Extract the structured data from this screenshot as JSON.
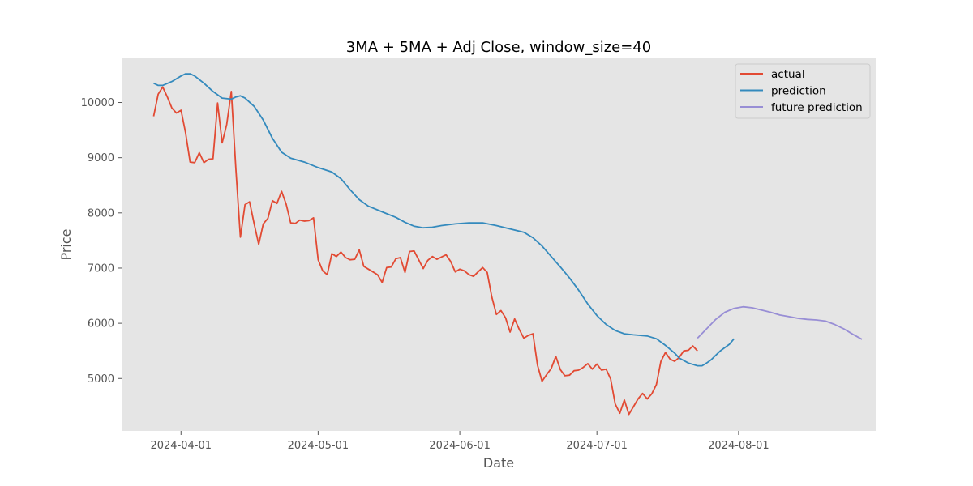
{
  "chart_data": {
    "type": "line",
    "title": "3MA + 5MA + Adj Close, window_size=40",
    "xlabel": "Date",
    "ylabel": "Price",
    "xlim": [
      "2024-03-19",
      "2024-08-31"
    ],
    "ylim": [
      4050,
      10800
    ],
    "x_ticks": [
      "2024-04-01",
      "2024-05-01",
      "2024-06-01",
      "2024-07-01",
      "2024-08-01"
    ],
    "y_ticks": [
      5000,
      6000,
      7000,
      8000,
      9000,
      10000
    ],
    "grid": false,
    "legend_position": "top-right",
    "series": [
      {
        "name": "actual",
        "color": "#e24a33",
        "points": [
          [
            "2024-03-26",
            9750
          ],
          [
            "2024-03-27",
            10150
          ],
          [
            "2024-03-28",
            10280
          ],
          [
            "2024-03-29",
            10100
          ],
          [
            "2024-03-30",
            9900
          ],
          [
            "2024-03-31",
            9810
          ],
          [
            "2024-04-01",
            9860
          ],
          [
            "2024-04-02",
            9450
          ],
          [
            "2024-04-03",
            8920
          ],
          [
            "2024-04-04",
            8910
          ],
          [
            "2024-04-05",
            9090
          ],
          [
            "2024-04-06",
            8910
          ],
          [
            "2024-04-07",
            8970
          ],
          [
            "2024-04-08",
            8980
          ],
          [
            "2024-04-09",
            9990
          ],
          [
            "2024-04-10",
            9270
          ],
          [
            "2024-04-11",
            9600
          ],
          [
            "2024-04-12",
            10200
          ],
          [
            "2024-04-13",
            8800
          ],
          [
            "2024-04-14",
            7560
          ],
          [
            "2024-04-15",
            8150
          ],
          [
            "2024-04-16",
            8200
          ],
          [
            "2024-04-17",
            7800
          ],
          [
            "2024-04-18",
            7430
          ],
          [
            "2024-04-19",
            7800
          ],
          [
            "2024-04-20",
            7900
          ],
          [
            "2024-04-21",
            8220
          ],
          [
            "2024-04-22",
            8170
          ],
          [
            "2024-04-23",
            8390
          ],
          [
            "2024-04-24",
            8160
          ],
          [
            "2024-04-25",
            7820
          ],
          [
            "2024-04-26",
            7810
          ],
          [
            "2024-04-27",
            7870
          ],
          [
            "2024-04-28",
            7850
          ],
          [
            "2024-04-29",
            7860
          ],
          [
            "2024-04-30",
            7910
          ],
          [
            "2024-05-01",
            7150
          ],
          [
            "2024-05-02",
            6950
          ],
          [
            "2024-05-03",
            6880
          ],
          [
            "2024-05-04",
            7260
          ],
          [
            "2024-05-05",
            7210
          ],
          [
            "2024-05-06",
            7290
          ],
          [
            "2024-05-07",
            7190
          ],
          [
            "2024-05-08",
            7150
          ],
          [
            "2024-05-09",
            7160
          ],
          [
            "2024-05-10",
            7330
          ],
          [
            "2024-05-11",
            7030
          ],
          [
            "2024-05-12",
            6980
          ],
          [
            "2024-05-13",
            6930
          ],
          [
            "2024-05-14",
            6880
          ],
          [
            "2024-05-15",
            6740
          ],
          [
            "2024-05-16",
            7010
          ],
          [
            "2024-05-17",
            7020
          ],
          [
            "2024-05-18",
            7170
          ],
          [
            "2024-05-19",
            7190
          ],
          [
            "2024-05-20",
            6920
          ],
          [
            "2024-05-21",
            7300
          ],
          [
            "2024-05-22",
            7310
          ],
          [
            "2024-05-23",
            7150
          ],
          [
            "2024-05-24",
            6990
          ],
          [
            "2024-05-25",
            7140
          ],
          [
            "2024-05-26",
            7210
          ],
          [
            "2024-05-27",
            7160
          ],
          [
            "2024-05-28",
            7200
          ],
          [
            "2024-05-29",
            7240
          ],
          [
            "2024-05-30",
            7120
          ],
          [
            "2024-05-31",
            6930
          ],
          [
            "2024-06-01",
            6980
          ],
          [
            "2024-06-02",
            6950
          ],
          [
            "2024-06-03",
            6880
          ],
          [
            "2024-06-04",
            6850
          ],
          [
            "2024-06-05",
            6930
          ],
          [
            "2024-06-06",
            7010
          ],
          [
            "2024-06-07",
            6920
          ],
          [
            "2024-06-08",
            6480
          ],
          [
            "2024-06-09",
            6160
          ],
          [
            "2024-06-10",
            6230
          ],
          [
            "2024-06-11",
            6100
          ],
          [
            "2024-06-12",
            5840
          ],
          [
            "2024-06-13",
            6080
          ],
          [
            "2024-06-14",
            5890
          ],
          [
            "2024-06-15",
            5730
          ],
          [
            "2024-06-16",
            5780
          ],
          [
            "2024-06-17",
            5810
          ],
          [
            "2024-06-18",
            5240
          ],
          [
            "2024-06-19",
            4950
          ],
          [
            "2024-06-20",
            5070
          ],
          [
            "2024-06-21",
            5180
          ],
          [
            "2024-06-22",
            5400
          ],
          [
            "2024-06-23",
            5160
          ],
          [
            "2024-06-24",
            5050
          ],
          [
            "2024-06-25",
            5060
          ],
          [
            "2024-06-26",
            5140
          ],
          [
            "2024-06-27",
            5150
          ],
          [
            "2024-06-28",
            5200
          ],
          [
            "2024-06-29",
            5270
          ],
          [
            "2024-06-30",
            5170
          ],
          [
            "2024-07-01",
            5260
          ],
          [
            "2024-07-02",
            5150
          ],
          [
            "2024-07-03",
            5170
          ],
          [
            "2024-07-04",
            4990
          ],
          [
            "2024-07-05",
            4540
          ],
          [
            "2024-07-06",
            4370
          ],
          [
            "2024-07-07",
            4610
          ],
          [
            "2024-07-08",
            4350
          ],
          [
            "2024-07-09",
            4490
          ],
          [
            "2024-07-10",
            4630
          ],
          [
            "2024-07-11",
            4730
          ],
          [
            "2024-07-12",
            4630
          ],
          [
            "2024-07-13",
            4720
          ],
          [
            "2024-07-14",
            4890
          ],
          [
            "2024-07-15",
            5310
          ],
          [
            "2024-07-16",
            5470
          ],
          [
            "2024-07-17",
            5350
          ],
          [
            "2024-07-18",
            5310
          ],
          [
            "2024-07-19",
            5380
          ],
          [
            "2024-07-20",
            5500
          ],
          [
            "2024-07-21",
            5510
          ],
          [
            "2024-07-22",
            5590
          ],
          [
            "2024-07-23",
            5500
          ]
        ]
      },
      {
        "name": "prediction",
        "color": "#348abd",
        "points": [
          [
            "2024-03-26",
            10350
          ],
          [
            "2024-03-27",
            10310
          ],
          [
            "2024-03-28",
            10310
          ],
          [
            "2024-03-30",
            10380
          ],
          [
            "2024-04-01",
            10480
          ],
          [
            "2024-04-02",
            10520
          ],
          [
            "2024-04-03",
            10520
          ],
          [
            "2024-04-04",
            10480
          ],
          [
            "2024-04-06",
            10350
          ],
          [
            "2024-04-08",
            10200
          ],
          [
            "2024-04-10",
            10080
          ],
          [
            "2024-04-12",
            10060
          ],
          [
            "2024-04-13",
            10100
          ],
          [
            "2024-04-14",
            10120
          ],
          [
            "2024-04-15",
            10080
          ],
          [
            "2024-04-17",
            9930
          ],
          [
            "2024-04-19",
            9680
          ],
          [
            "2024-04-21",
            9350
          ],
          [
            "2024-04-23",
            9100
          ],
          [
            "2024-04-25",
            8990
          ],
          [
            "2024-04-28",
            8920
          ],
          [
            "2024-05-01",
            8820
          ],
          [
            "2024-05-04",
            8740
          ],
          [
            "2024-05-06",
            8620
          ],
          [
            "2024-05-08",
            8420
          ],
          [
            "2024-05-10",
            8240
          ],
          [
            "2024-05-12",
            8120
          ],
          [
            "2024-05-15",
            8020
          ],
          [
            "2024-05-18",
            7920
          ],
          [
            "2024-05-20",
            7830
          ],
          [
            "2024-05-22",
            7760
          ],
          [
            "2024-05-24",
            7730
          ],
          [
            "2024-05-26",
            7740
          ],
          [
            "2024-05-28",
            7770
          ],
          [
            "2024-05-31",
            7800
          ],
          [
            "2024-06-03",
            7820
          ],
          [
            "2024-06-06",
            7820
          ],
          [
            "2024-06-09",
            7770
          ],
          [
            "2024-06-12",
            7710
          ],
          [
            "2024-06-15",
            7650
          ],
          [
            "2024-06-17",
            7550
          ],
          [
            "2024-06-19",
            7400
          ],
          [
            "2024-06-21",
            7210
          ],
          [
            "2024-06-23",
            7020
          ],
          [
            "2024-06-25",
            6820
          ],
          [
            "2024-06-27",
            6600
          ],
          [
            "2024-06-29",
            6350
          ],
          [
            "2024-07-01",
            6140
          ],
          [
            "2024-07-03",
            5980
          ],
          [
            "2024-07-05",
            5870
          ],
          [
            "2024-07-07",
            5810
          ],
          [
            "2024-07-09",
            5790
          ],
          [
            "2024-07-12",
            5770
          ],
          [
            "2024-07-14",
            5720
          ],
          [
            "2024-07-16",
            5600
          ],
          [
            "2024-07-18",
            5460
          ],
          [
            "2024-07-19",
            5370
          ],
          [
            "2024-07-21",
            5280
          ],
          [
            "2024-07-23",
            5230
          ],
          [
            "2024-07-24",
            5230
          ],
          [
            "2024-07-25",
            5280
          ],
          [
            "2024-07-26",
            5340
          ],
          [
            "2024-07-27",
            5420
          ],
          [
            "2024-07-28",
            5500
          ],
          [
            "2024-07-30",
            5620
          ],
          [
            "2024-07-31",
            5720
          ]
        ]
      },
      {
        "name": "future prediction",
        "color": "#988ed5",
        "points": [
          [
            "2024-07-23",
            5730
          ],
          [
            "2024-07-25",
            5900
          ],
          [
            "2024-07-27",
            6070
          ],
          [
            "2024-07-29",
            6200
          ],
          [
            "2024-07-31",
            6270
          ],
          [
            "2024-08-02",
            6300
          ],
          [
            "2024-08-04",
            6280
          ],
          [
            "2024-08-06",
            6240
          ],
          [
            "2024-08-08",
            6200
          ],
          [
            "2024-08-10",
            6150
          ],
          [
            "2024-08-12",
            6120
          ],
          [
            "2024-08-14",
            6090
          ],
          [
            "2024-08-16",
            6070
          ],
          [
            "2024-08-18",
            6060
          ],
          [
            "2024-08-20",
            6040
          ],
          [
            "2024-08-22",
            5980
          ],
          [
            "2024-08-24",
            5900
          ],
          [
            "2024-08-26",
            5800
          ],
          [
            "2024-08-28",
            5710
          ]
        ]
      }
    ]
  }
}
